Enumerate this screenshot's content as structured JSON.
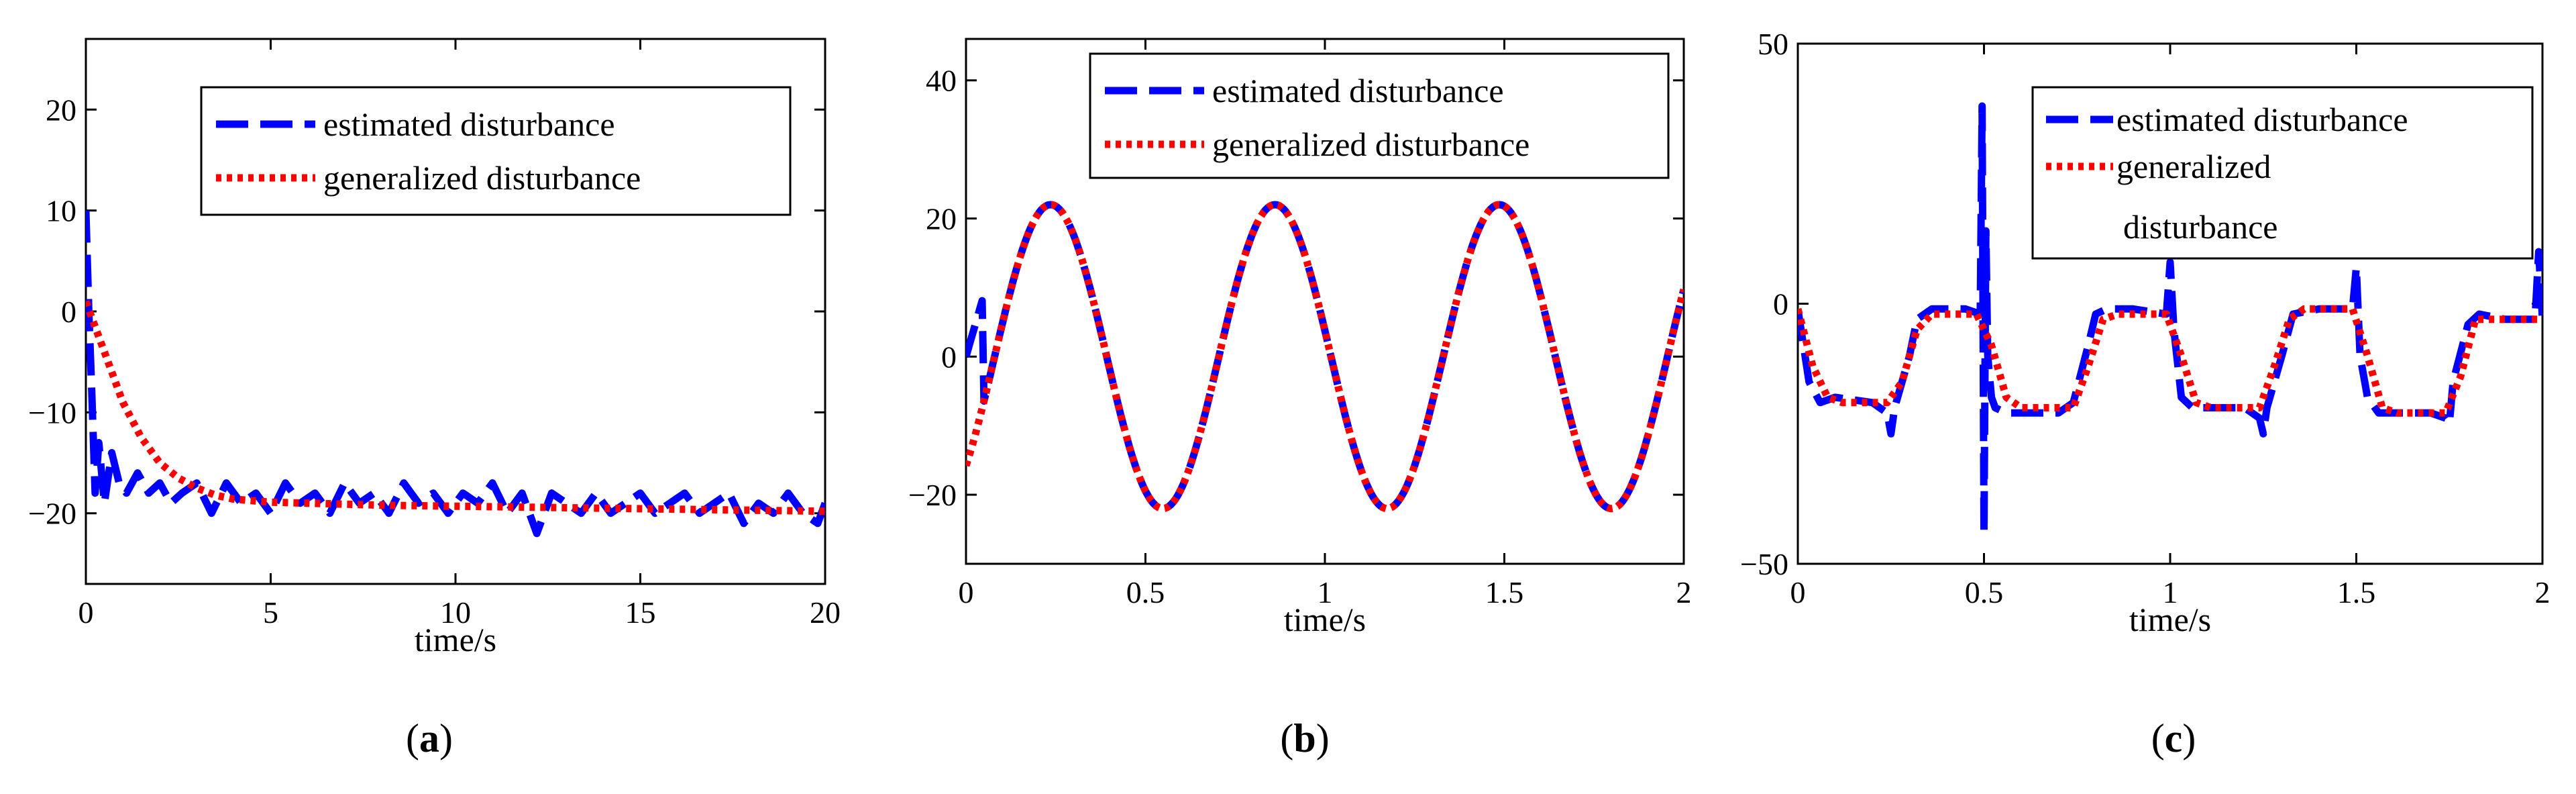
{
  "figure": {
    "panels": [
      "a",
      "b",
      "c"
    ]
  },
  "chart_data": [
    {
      "type": "line",
      "panel_label": "a",
      "caption_open": "(",
      "caption_close": ")",
      "xlabel": "time/s",
      "ylabel": "",
      "xlim": [
        0,
        20
      ],
      "ylim": [
        -27,
        27
      ],
      "xticks": [
        0,
        5,
        10,
        15,
        20
      ],
      "yticks": [
        -20,
        -10,
        0,
        10,
        20
      ],
      "legend": {
        "position": "top-right"
      },
      "series": [
        {
          "name": "estimated disturbance",
          "color": "#0000ff",
          "style": "dashed",
          "x": [
            0,
            0.08,
            0.16,
            0.25,
            0.35,
            0.5,
            0.7,
            0.9,
            1.1,
            1.4,
            1.7,
            2.0,
            2.3,
            2.6,
            3.0,
            3.4,
            3.8,
            4.2,
            4.6,
            5.0,
            5.4,
            5.8,
            6.2,
            6.6,
            7.0,
            7.4,
            7.8,
            8.2,
            8.6,
            9.0,
            9.4,
            9.8,
            10.2,
            10.6,
            11.0,
            11.4,
            11.8,
            12.2,
            12.6,
            13.0,
            13.4,
            13.8,
            14.2,
            14.6,
            15.0,
            15.4,
            15.8,
            16.2,
            16.6,
            17.0,
            17.4,
            17.8,
            18.2,
            18.6,
            19.0,
            19.4,
            19.8,
            20.0
          ],
          "y": [
            10,
            0,
            -8,
            -18,
            -13,
            -19,
            -14,
            -17,
            -18,
            -16,
            -18,
            -17,
            -19,
            -18,
            -17,
            -20,
            -17,
            -19,
            -18,
            -20,
            -17,
            -19,
            -18,
            -20,
            -17,
            -19,
            -18,
            -20,
            -17,
            -19,
            -18,
            -20,
            -18,
            -19,
            -17,
            -20,
            -18,
            -22,
            -18,
            -19,
            -20,
            -18,
            -20,
            -19,
            -18,
            -20,
            -19,
            -18,
            -20,
            -19,
            -18,
            -21,
            -19,
            -20,
            -18,
            -20,
            -21,
            -19
          ]
        },
        {
          "name": "generalized disturbance",
          "color": "#ff0000",
          "style": "dotted",
          "x": [
            0,
            0.3,
            0.6,
            1.0,
            1.5,
            2.0,
            2.5,
            3.0,
            3.5,
            4.0,
            5.0,
            6.0,
            7.0,
            8.0,
            10.0,
            12.0,
            14.0,
            16.0,
            18.0,
            20.0
          ],
          "y": [
            1,
            -2,
            -5,
            -9,
            -12.5,
            -15,
            -16.5,
            -17.5,
            -18.2,
            -18.6,
            -18.9,
            -19.0,
            -19.1,
            -19.2,
            -19.3,
            -19.4,
            -19.5,
            -19.6,
            -19.7,
            -19.8
          ]
        }
      ]
    },
    {
      "type": "line",
      "panel_label": "b",
      "caption_open": "(",
      "caption_close": ")",
      "xlabel": "time/s",
      "ylabel": "",
      "xlim": [
        0,
        2
      ],
      "ylim": [
        -30,
        46
      ],
      "xticks": [
        0,
        0.5,
        1,
        1.5,
        2
      ],
      "yticks": [
        -20,
        0,
        20,
        40
      ],
      "legend": {
        "position": "top-right"
      },
      "series": [
        {
          "name": "estimated disturbance",
          "color": "#0000ff",
          "style": "dashed",
          "func": "sine",
          "amp": 22,
          "freq": 1.6,
          "phase": -0.8,
          "x0": 0.0,
          "x1": 2.0,
          "early_spike": 9
        },
        {
          "name": "generalized disturbance",
          "color": "#ff0000",
          "style": "dotted",
          "func": "sine",
          "amp": 22,
          "freq": 1.6,
          "phase": -0.8,
          "x0": 0.0,
          "x1": 2.0
        }
      ]
    },
    {
      "type": "line",
      "panel_label": "c",
      "caption_open": "(",
      "caption_close": ")",
      "xlabel": "time/s",
      "ylabel": "",
      "xlim": [
        0,
        2
      ],
      "ylim": [
        -50,
        50
      ],
      "xticks": [
        0,
        0.5,
        1,
        1.5,
        2
      ],
      "yticks": [
        -50,
        0,
        50
      ],
      "legend": {
        "position": "top-right",
        "lines": [
          "estimated disturbance",
          "generalized",
          "disturbance"
        ]
      },
      "series": [
        {
          "name": "estimated disturbance",
          "color": "#0000ff",
          "style": "dashed",
          "x": [
            0,
            0.03,
            0.06,
            0.1,
            0.2,
            0.24,
            0.25,
            0.26,
            0.3,
            0.32,
            0.36,
            0.45,
            0.49,
            0.495,
            0.5,
            0.505,
            0.51,
            0.52,
            0.53,
            0.56,
            0.6,
            0.7,
            0.74,
            0.78,
            0.8,
            0.83,
            0.9,
            0.99,
            1.0,
            1.01,
            1.03,
            1.06,
            1.1,
            1.2,
            1.24,
            1.25,
            1.26,
            1.3,
            1.33,
            1.4,
            1.49,
            1.5,
            1.51,
            1.53,
            1.56,
            1.6,
            1.7,
            1.74,
            1.75,
            1.76,
            1.8,
            1.83,
            1.9,
            1.98,
            1.99,
            2.0
          ],
          "y": [
            -1,
            -15,
            -19,
            -18,
            -19,
            -21,
            -25,
            -20,
            -10,
            -3,
            -1,
            -1,
            -2,
            38,
            -44,
            14,
            -10,
            -18,
            -20,
            -21,
            -21,
            -21,
            -19,
            -8,
            -2,
            -1,
            -1,
            -2,
            8,
            -5,
            -18,
            -20,
            -20,
            -20,
            -22,
            -25,
            -20,
            -10,
            -2,
            -1,
            -1,
            7,
            -10,
            -18,
            -21,
            -21,
            -21,
            -22,
            -23,
            -15,
            -4,
            -2,
            -3,
            -3,
            10,
            -3
          ]
        },
        {
          "name": "generalized disturbance",
          "color": "#ff0000",
          "style": "dotted",
          "x": [
            0,
            0.04,
            0.08,
            0.12,
            0.24,
            0.28,
            0.32,
            0.36,
            0.48,
            0.52,
            0.56,
            0.6,
            0.74,
            0.78,
            0.82,
            0.86,
            0.99,
            1.03,
            1.07,
            1.11,
            1.24,
            1.28,
            1.32,
            1.36,
            1.49,
            1.53,
            1.57,
            1.61,
            1.74,
            1.78,
            1.82,
            1.86,
            2.0
          ],
          "y": [
            -1,
            -12,
            -18,
            -19,
            -19,
            -15,
            -5,
            -2,
            -2,
            -8,
            -18,
            -20,
            -20,
            -12,
            -3,
            -2,
            -2,
            -10,
            -19,
            -20,
            -20,
            -12,
            -3,
            -1,
            -1,
            -10,
            -20,
            -21,
            -21,
            -14,
            -3,
            -3,
            -3
          ]
        }
      ]
    }
  ]
}
